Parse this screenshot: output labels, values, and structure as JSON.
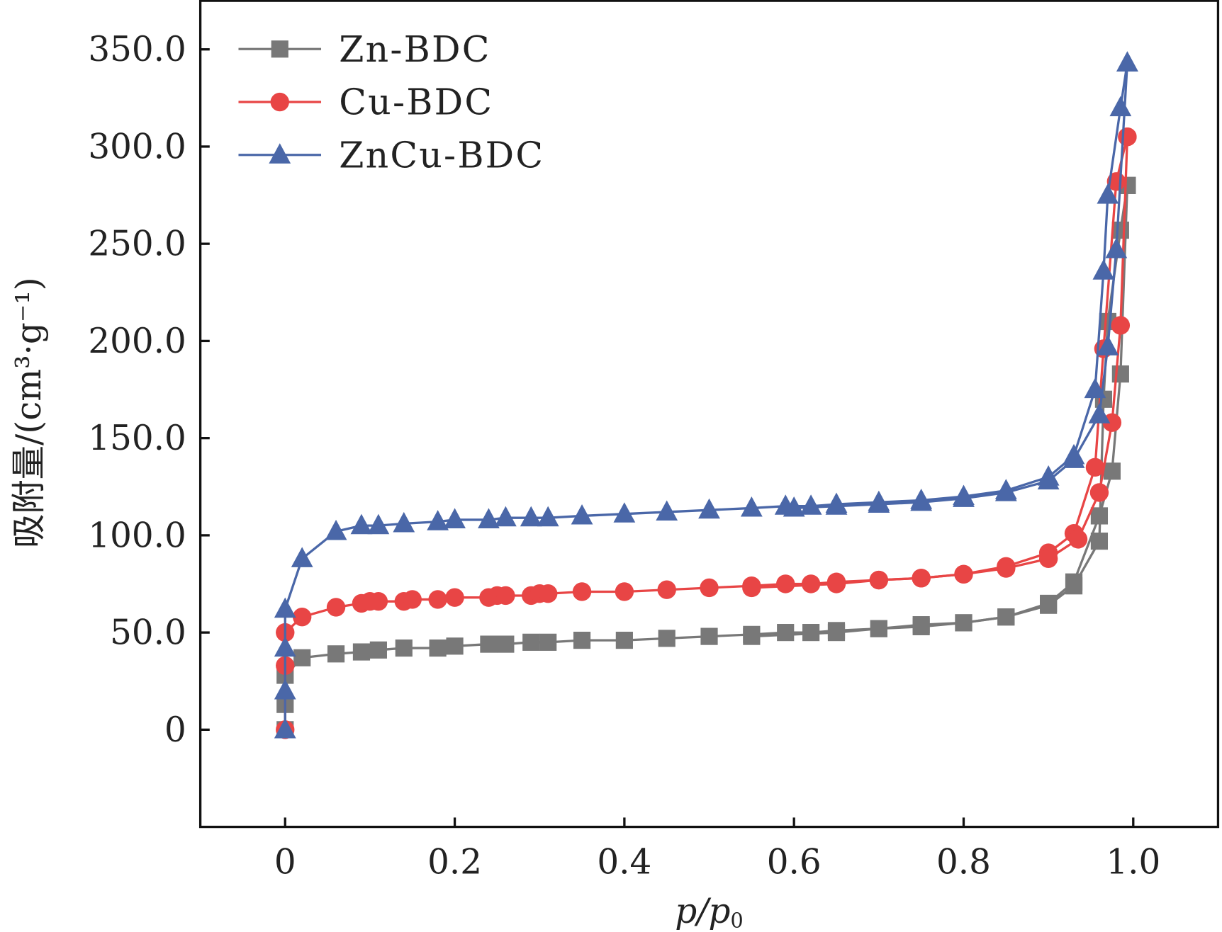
{
  "chart_data": {
    "type": "line",
    "title": "",
    "xlabel": "p/p0",
    "xlabel_main": "p/p",
    "xlabel_sub": "0",
    "ylabel": "吸附量/(cm³·g⁻¹)",
    "xlim": [
      -0.1,
      1.1
    ],
    "ylim": [
      -50,
      375
    ],
    "xticks": [
      0,
      0.2,
      0.4,
      0.6,
      0.8,
      1.0
    ],
    "xtick_labels": [
      "0",
      "0.2",
      "0.4",
      "0.6",
      "0.8",
      "1.0"
    ],
    "yticks": [
      0,
      50,
      100,
      150,
      200,
      250,
      300,
      350
    ],
    "ytick_labels": [
      "0",
      "50.0",
      "100.0",
      "150.0",
      "200.0",
      "250.0",
      "300.0",
      "350.0"
    ],
    "grid": false,
    "legend_position": "top-left",
    "series": [
      {
        "name": "Zn-BDC",
        "color": "#787878",
        "marker": "square",
        "adsorption": [
          [
            0,
            0
          ],
          [
            0,
            13
          ],
          [
            0,
            28
          ],
          [
            0.02,
            37
          ],
          [
            0.06,
            39
          ],
          [
            0.09,
            40
          ],
          [
            0.11,
            41
          ],
          [
            0.14,
            42
          ],
          [
            0.18,
            42
          ],
          [
            0.2,
            43
          ],
          [
            0.24,
            44
          ],
          [
            0.26,
            44
          ],
          [
            0.29,
            45
          ],
          [
            0.31,
            45
          ],
          [
            0.35,
            46
          ],
          [
            0.4,
            46
          ],
          [
            0.45,
            47
          ],
          [
            0.5,
            48
          ],
          [
            0.55,
            49
          ],
          [
            0.59,
            50
          ],
          [
            0.62,
            50
          ],
          [
            0.65,
            51
          ],
          [
            0.7,
            52
          ],
          [
            0.75,
            54
          ],
          [
            0.8,
            55
          ],
          [
            0.85,
            58
          ],
          [
            0.9,
            64
          ],
          [
            0.93,
            74
          ],
          [
            0.96,
            97
          ],
          [
            0.965,
            170
          ],
          [
            0.97,
            210
          ],
          [
            0.985,
            257
          ],
          [
            0.993,
            280
          ]
        ],
        "desorption": [
          [
            0.993,
            280
          ],
          [
            0.985,
            183
          ],
          [
            0.975,
            133
          ],
          [
            0.96,
            110
          ],
          [
            0.93,
            76
          ],
          [
            0.9,
            65
          ],
          [
            0.85,
            58
          ],
          [
            0.8,
            55
          ],
          [
            0.75,
            53
          ],
          [
            0.7,
            52
          ],
          [
            0.65,
            50
          ],
          [
            0.55,
            48
          ]
        ]
      },
      {
        "name": "Cu-BDC",
        "color": "#e84545",
        "marker": "circle",
        "adsorption": [
          [
            0,
            0
          ],
          [
            0,
            33
          ],
          [
            0,
            50
          ],
          [
            0.02,
            58
          ],
          [
            0.06,
            63
          ],
          [
            0.09,
            65
          ],
          [
            0.1,
            66
          ],
          [
            0.11,
            66
          ],
          [
            0.14,
            66
          ],
          [
            0.15,
            67
          ],
          [
            0.18,
            67
          ],
          [
            0.2,
            68
          ],
          [
            0.24,
            68
          ],
          [
            0.25,
            69
          ],
          [
            0.26,
            69
          ],
          [
            0.29,
            69
          ],
          [
            0.3,
            70
          ],
          [
            0.31,
            70
          ],
          [
            0.35,
            71
          ],
          [
            0.4,
            71
          ],
          [
            0.45,
            72
          ],
          [
            0.5,
            73
          ],
          [
            0.55,
            74
          ],
          [
            0.59,
            75
          ],
          [
            0.62,
            75
          ],
          [
            0.65,
            76
          ],
          [
            0.7,
            77
          ],
          [
            0.75,
            78
          ],
          [
            0.8,
            80
          ],
          [
            0.85,
            84
          ],
          [
            0.9,
            91
          ],
          [
            0.93,
            101
          ],
          [
            0.955,
            135
          ],
          [
            0.965,
            196
          ],
          [
            0.98,
            282
          ],
          [
            0.993,
            305
          ]
        ],
        "desorption": [
          [
            0.993,
            305
          ],
          [
            0.985,
            208
          ],
          [
            0.975,
            158
          ],
          [
            0.96,
            122
          ],
          [
            0.935,
            98
          ],
          [
            0.9,
            88
          ],
          [
            0.85,
            83
          ],
          [
            0.8,
            80
          ],
          [
            0.75,
            78
          ],
          [
            0.7,
            77
          ],
          [
            0.65,
            75
          ],
          [
            0.55,
            73
          ]
        ]
      },
      {
        "name": "ZnCu-BDC",
        "color": "#4a67a8",
        "marker": "triangle",
        "adsorption": [
          [
            0,
            0
          ],
          [
            0,
            20
          ],
          [
            0,
            42
          ],
          [
            0,
            62
          ],
          [
            0.02,
            88
          ],
          [
            0.06,
            102
          ],
          [
            0.09,
            105
          ],
          [
            0.11,
            105
          ],
          [
            0.14,
            106
          ],
          [
            0.18,
            107
          ],
          [
            0.2,
            108
          ],
          [
            0.24,
            108
          ],
          [
            0.26,
            109
          ],
          [
            0.29,
            109
          ],
          [
            0.31,
            109
          ],
          [
            0.35,
            110
          ],
          [
            0.4,
            111
          ],
          [
            0.45,
            112
          ],
          [
            0.5,
            113
          ],
          [
            0.55,
            114
          ],
          [
            0.59,
            115
          ],
          [
            0.62,
            115
          ],
          [
            0.65,
            116
          ],
          [
            0.7,
            117
          ],
          [
            0.75,
            118
          ],
          [
            0.8,
            120
          ],
          [
            0.85,
            123
          ],
          [
            0.9,
            130
          ],
          [
            0.93,
            141
          ],
          [
            0.955,
            175
          ],
          [
            0.965,
            236
          ],
          [
            0.97,
            275
          ],
          [
            0.985,
            320
          ],
          [
            0.993,
            343
          ]
        ],
        "desorption": [
          [
            0.993,
            343
          ],
          [
            0.98,
            247
          ],
          [
            0.97,
            197
          ],
          [
            0.96,
            162
          ],
          [
            0.93,
            139
          ],
          [
            0.9,
            128
          ],
          [
            0.85,
            122
          ],
          [
            0.8,
            119
          ],
          [
            0.75,
            117
          ],
          [
            0.7,
            116
          ],
          [
            0.65,
            115
          ],
          [
            0.6,
            114
          ]
        ]
      }
    ]
  }
}
